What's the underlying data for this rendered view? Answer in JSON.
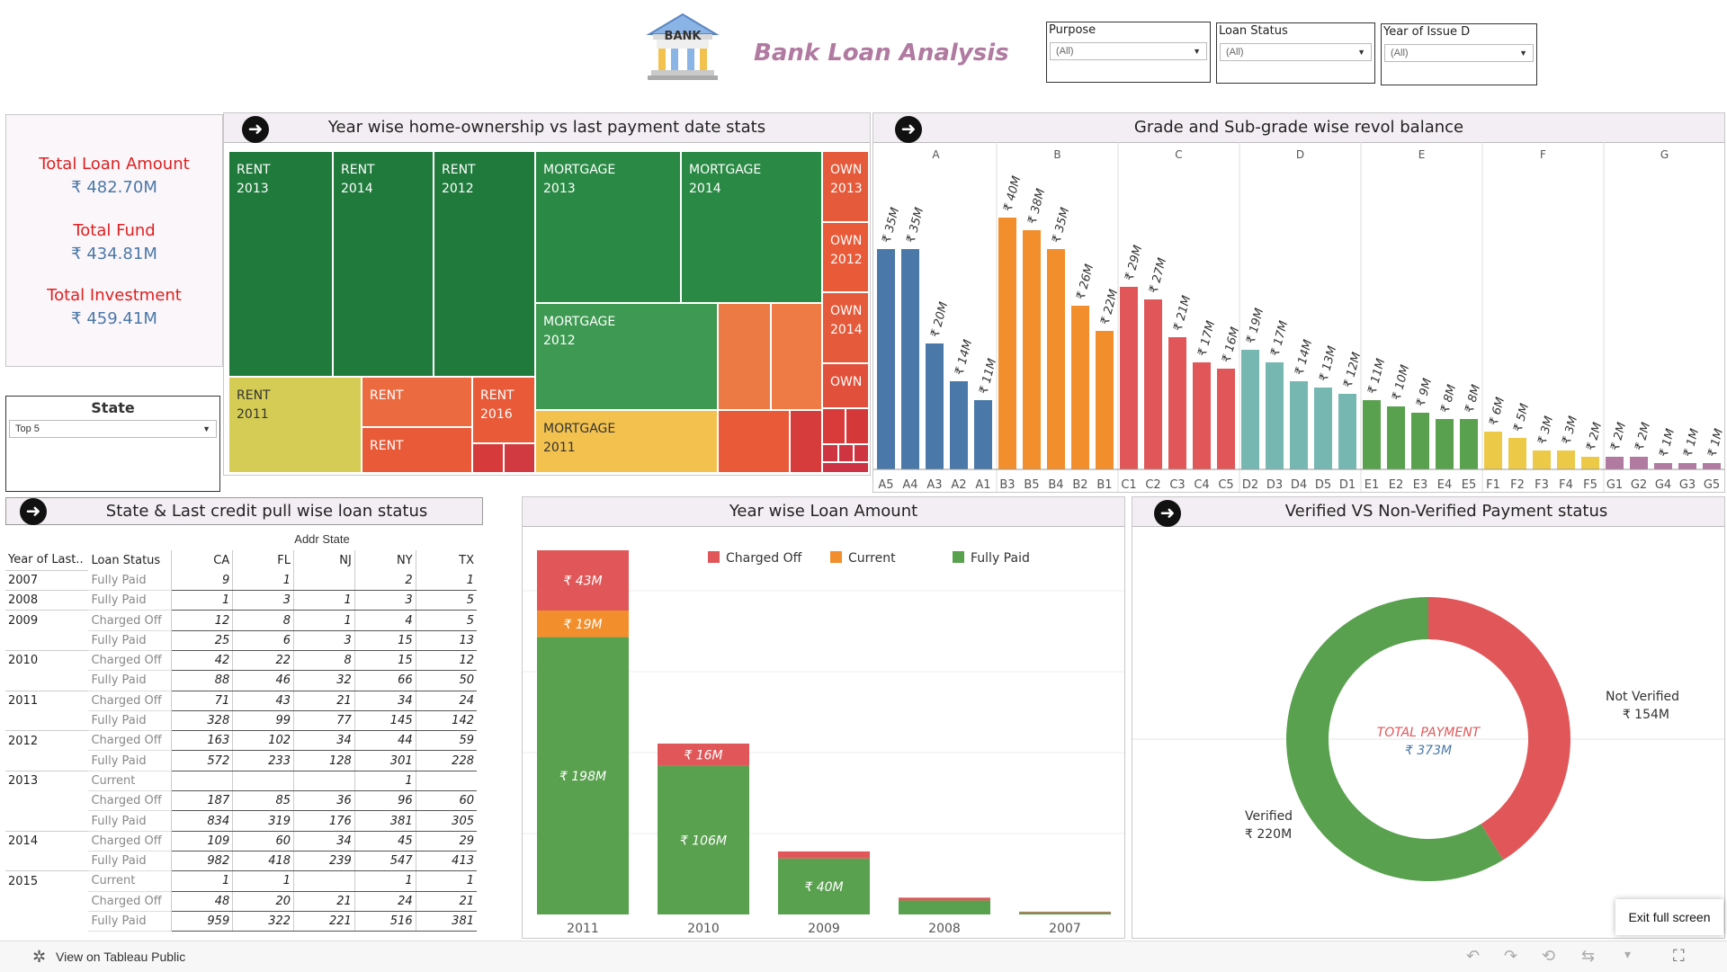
{
  "header": {
    "title": "Bank Loan Analysis",
    "logo_text": "BANK"
  },
  "filters": [
    {
      "label": "Purpose",
      "value": "(All)"
    },
    {
      "label": "Loan Status",
      "value": "(All)"
    },
    {
      "label": "Year of Issue D",
      "value": "(All)"
    }
  ],
  "kpis": {
    "total_loan_label": "Total Loan Amount",
    "total_loan_value": "₹ 482.70M",
    "total_fund_label": "Total Fund",
    "total_fund_value": "₹ 434.81M",
    "total_investment_label": "Total Investment",
    "total_investment_value": "₹ 459.41M"
  },
  "state_filter": {
    "label": "State",
    "value": "Top 5"
  },
  "treemap": {
    "title": "Year wise home-ownership vs last payment date stats",
    "cells": [
      {
        "l1": "RENT",
        "l2": "2013",
        "color": "#1f7a3c"
      },
      {
        "l1": "RENT",
        "l2": "2014",
        "color": "#1f7a3c"
      },
      {
        "l1": "RENT",
        "l2": "2012",
        "color": "#1f7a3c"
      },
      {
        "l1": "MORTGAGE",
        "l2": "2013",
        "color": "#2a8a45"
      },
      {
        "l1": "MORTGAGE",
        "l2": "2014",
        "color": "#2a8a45"
      },
      {
        "l1": "OWN",
        "l2": "2013",
        "color": "#e45a3a"
      },
      {
        "l1": "OWN",
        "l2": "2012",
        "color": "#e45a3a"
      },
      {
        "l1": "OWN",
        "l2": "2014",
        "color": "#e45a3a"
      },
      {
        "l1": "OWN",
        "l2": "",
        "color": "#e45a3a"
      },
      {
        "l1": "MORTGAGE",
        "l2": "2012",
        "color": "#3e9a52"
      },
      {
        "l1": "RENT",
        "l2": "2011",
        "color": "#d4cc54"
      },
      {
        "l1": "RENT",
        "l2": "",
        "color": "#ec6a40"
      },
      {
        "l1": "RENT",
        "l2": "2016",
        "color": "#e85a38"
      },
      {
        "l1": "RENT",
        "l2": "",
        "color": "#e85a38"
      },
      {
        "l1": "MORTGAGE",
        "l2": "2011",
        "color": "#f2c14e"
      }
    ]
  },
  "grade_chart": {
    "title": "Grade and Sub-grade wise revol balance",
    "grades": [
      {
        "name": "A",
        "color": "#4a78a8",
        "subs": [
          "A5",
          "A4",
          "A3",
          "A2",
          "A1"
        ],
        "values": [
          35,
          35,
          20,
          14,
          11
        ],
        "labels": [
          "₹ 35M",
          "₹ 35M",
          "₹ 20M",
          "₹ 14M",
          "₹ 11M"
        ]
      },
      {
        "name": "B",
        "color": "#f28e2b",
        "subs": [
          "B3",
          "B5",
          "B4",
          "B2",
          "B1"
        ],
        "values": [
          40,
          38,
          35,
          26,
          22
        ],
        "labels": [
          "₹ 40M",
          "₹ 38M",
          "₹ 35M",
          "₹ 26M",
          "₹ 22M"
        ]
      },
      {
        "name": "C",
        "color": "#e15759",
        "subs": [
          "C1",
          "C2",
          "C3",
          "C4",
          "C5"
        ],
        "values": [
          29,
          27,
          21,
          17,
          16
        ],
        "labels": [
          "₹ 29M",
          "₹ 27M",
          "₹ 21M",
          "₹ 17M",
          "₹ 16M"
        ]
      },
      {
        "name": "D",
        "color": "#76b7b2",
        "subs": [
          "D2",
          "D3",
          "D4",
          "D5",
          "D1"
        ],
        "values": [
          19,
          17,
          14,
          13,
          12
        ],
        "labels": [
          "₹ 19M",
          "₹ 17M",
          "₹ 14M",
          "₹ 13M",
          "₹ 12M"
        ]
      },
      {
        "name": "E",
        "color": "#59a14f",
        "subs": [
          "E1",
          "E2",
          "E3",
          "E4",
          "E5"
        ],
        "values": [
          11,
          10,
          9,
          8,
          8
        ],
        "labels": [
          "₹ 11M",
          "₹ 10M",
          "₹ 9M",
          "₹ 8M",
          "₹ 8M"
        ]
      },
      {
        "name": "F",
        "color": "#edc948",
        "subs": [
          "F1",
          "F2",
          "F3",
          "F4",
          "F5"
        ],
        "values": [
          6,
          5,
          3,
          3,
          2
        ],
        "labels": [
          "₹ 6M",
          "₹ 5M",
          "₹ 3M",
          "₹ 3M",
          "₹ 2M"
        ]
      },
      {
        "name": "G",
        "color": "#b07aa1",
        "subs": [
          "G1",
          "G2",
          "G4",
          "G3",
          "G5"
        ],
        "values": [
          2,
          2,
          1,
          1,
          1
        ],
        "labels": [
          "₹ 2M",
          "₹ 2M",
          "₹ 1M",
          "₹ 1M",
          "₹ 1M"
        ]
      }
    ]
  },
  "crosstab": {
    "title": "State & Last credit pull wise loan status",
    "column_group": "Addr State",
    "header_year": "Year of Last..",
    "header_status": "Loan Status",
    "states": [
      "CA",
      "FL",
      "NJ",
      "NY",
      "TX"
    ],
    "rows": [
      {
        "year": "2007",
        "status": "Fully Paid",
        "vals": [
          "9",
          "1",
          "",
          "2",
          "1"
        ]
      },
      {
        "year": "2008",
        "status": "Fully Paid",
        "vals": [
          "1",
          "3",
          "1",
          "3",
          "5"
        ]
      },
      {
        "year": "2009",
        "status": "Charged Off",
        "vals": [
          "12",
          "8",
          "1",
          "4",
          "5"
        ]
      },
      {
        "year": "",
        "status": "Fully Paid",
        "vals": [
          "25",
          "6",
          "3",
          "15",
          "13"
        ]
      },
      {
        "year": "2010",
        "status": "Charged Off",
        "vals": [
          "42",
          "22",
          "8",
          "15",
          "12"
        ]
      },
      {
        "year": "",
        "status": "Fully Paid",
        "vals": [
          "88",
          "46",
          "32",
          "66",
          "50"
        ]
      },
      {
        "year": "2011",
        "status": "Charged Off",
        "vals": [
          "71",
          "43",
          "21",
          "34",
          "24"
        ]
      },
      {
        "year": "",
        "status": "Fully Paid",
        "vals": [
          "328",
          "99",
          "77",
          "145",
          "142"
        ]
      },
      {
        "year": "2012",
        "status": "Charged Off",
        "vals": [
          "163",
          "102",
          "34",
          "44",
          "59"
        ]
      },
      {
        "year": "",
        "status": "Fully Paid",
        "vals": [
          "572",
          "233",
          "128",
          "301",
          "228"
        ]
      },
      {
        "year": "2013",
        "status": "Current",
        "vals": [
          "",
          "",
          "",
          "1",
          ""
        ]
      },
      {
        "year": "",
        "status": "Charged Off",
        "vals": [
          "187",
          "85",
          "36",
          "96",
          "60"
        ]
      },
      {
        "year": "",
        "status": "Fully Paid",
        "vals": [
          "834",
          "319",
          "176",
          "381",
          "305"
        ]
      },
      {
        "year": "2014",
        "status": "Charged Off",
        "vals": [
          "109",
          "60",
          "34",
          "45",
          "29"
        ]
      },
      {
        "year": "",
        "status": "Fully Paid",
        "vals": [
          "982",
          "418",
          "239",
          "547",
          "413"
        ]
      },
      {
        "year": "2015",
        "status": "Current",
        "vals": [
          "1",
          "1",
          "",
          "1",
          "1"
        ]
      },
      {
        "year": "",
        "status": "Charged Off",
        "vals": [
          "48",
          "20",
          "21",
          "24",
          "21"
        ]
      },
      {
        "year": "",
        "status": "Fully Paid",
        "vals": [
          "959",
          "322",
          "221",
          "516",
          "381"
        ]
      }
    ]
  },
  "chart_data": [
    {
      "type": "bar",
      "title": "Year wise Loan Amount",
      "categories": [
        "2011",
        "2010",
        "2009",
        "2008",
        "2007"
      ],
      "series": [
        {
          "name": "Fully Paid",
          "color": "#59a14f",
          "values": [
            198,
            106,
            40,
            10,
            1.5
          ],
          "labels": [
            "₹ 198M",
            "₹ 106M",
            "₹ 40M",
            "",
            ""
          ]
        },
        {
          "name": "Current",
          "color": "#f28e2b",
          "values": [
            19,
            0,
            0,
            0,
            0
          ],
          "labels": [
            "₹ 19M",
            "",
            "",
            "",
            ""
          ]
        },
        {
          "name": "Charged Off",
          "color": "#e15759",
          "values": [
            43,
            16,
            5,
            2,
            0.5
          ],
          "labels": [
            "₹ 43M",
            "₹ 16M",
            "",
            "",
            ""
          ]
        }
      ],
      "legend": [
        "Charged Off",
        "Current",
        "Fully Paid"
      ],
      "ylim": [
        0,
        260
      ]
    },
    {
      "type": "pie",
      "title": "Verified VS Non-Verified Payment status",
      "center_label": "TOTAL PAYMENT",
      "center_value": "₹ 373M",
      "slices": [
        {
          "name": "Verified",
          "value": 220,
          "label": "₹ 220M",
          "color": "#59a14f"
        },
        {
          "name": "Not Verified",
          "value": 154,
          "label": "₹ 154M",
          "color": "#e15759"
        }
      ]
    }
  ],
  "footer": {
    "tableau": "View on Tableau Public",
    "exit": "Exit full screen"
  }
}
